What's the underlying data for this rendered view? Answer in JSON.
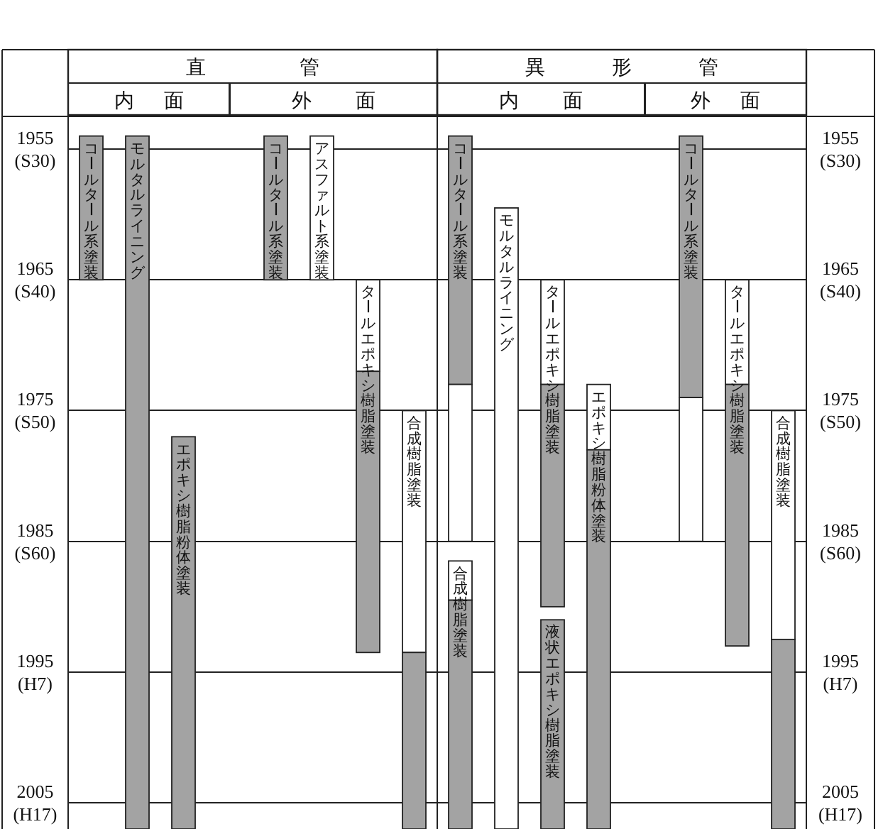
{
  "chart_data": [
    {
      "type": "bar",
      "title": "直管",
      "categories": [
        null,
        null,
        null,
        null,
        null,
        null,
        null,
        null
      ],
      "ylim": [
        2007,
        1952.5
      ],
      "yticks": [
        1955,
        1965,
        1975,
        1985,
        1995,
        2005
      ],
      "grid": "y",
      "annotations": [
        "内面",
        "外面",
        "(S30)",
        "(S40)",
        "(S50)",
        "(S60)",
        "(H7)",
        "(H17)"
      ],
      "series": [
        {
          "name": "コールタール系塗装",
          "color": "#a3a3a3",
          "base": [
            1954,
            null,
            null,
            null,
            1954,
            null,
            null,
            null
          ],
          "values": [
            11,
            null,
            null,
            null,
            11,
            null,
            null,
            null
          ]
        },
        {
          "name": "モルタルライニング",
          "color": "#a3a3a3",
          "base": [
            null,
            1954,
            null,
            null,
            null,
            null,
            null,
            null
          ],
          "values": [
            null,
            53,
            null,
            null,
            null,
            null,
            null,
            null
          ]
        },
        {
          "name": "エポキシ樹脂粉体塗装",
          "color": "#a3a3a3",
          "base": [
            null,
            null,
            1977,
            null,
            null,
            null,
            null,
            null
          ],
          "values": [
            null,
            null,
            30,
            null,
            null,
            null,
            null,
            null
          ]
        },
        {
          "name": "アスファルト系塗装",
          "color": "#ffffff",
          "base": [
            null,
            null,
            null,
            null,
            null,
            1954,
            null,
            null
          ],
          "values": [
            null,
            null,
            null,
            null,
            null,
            11,
            null,
            null
          ]
        },
        {
          "name": "タールエポキシ樹脂塗装",
          "color": "#ffffff",
          "base": [
            null,
            null,
            null,
            null,
            null,
            null,
            1965,
            null
          ],
          "values": [
            null,
            null,
            null,
            null,
            null,
            null,
            7,
            null
          ]
        },
        {
          "name": "合成樹脂塗装",
          "color": "#ffffff",
          "base": [
            null,
            null,
            null,
            null,
            null,
            null,
            null,
            1975
          ],
          "values": [
            null,
            null,
            null,
            null,
            null,
            null,
            null,
            18.5
          ]
        },
        {
          "color": "#a3a3a3",
          "base": [
            null,
            null,
            null,
            null,
            null,
            null,
            1972,
            1993.5
          ],
          "values": [
            null,
            null,
            null,
            null,
            null,
            null,
            21.5,
            13.5
          ]
        }
      ]
    },
    {
      "type": "bar",
      "title": "異形管",
      "categories": [
        null,
        null,
        null,
        null,
        null,
        null,
        null,
        null
      ],
      "y2lim": [
        2007,
        1952.5
      ],
      "y2ticks": [
        1955,
        1965,
        1975,
        1985,
        1995,
        2005
      ],
      "grid": "y",
      "annotations": [
        "内面",
        "外面",
        "(S30)",
        "(S40)",
        "(S50)",
        "(S60)",
        "(H7)",
        "(H17)"
      ],
      "series": [
        {
          "name": "コールタール系塗装",
          "color": "#a3a3a3",
          "axis": "y2",
          "base": [
            1954,
            null,
            null,
            null,
            null,
            1954,
            null,
            null
          ],
          "values": [
            19,
            null,
            null,
            null,
            null,
            20,
            null,
            null
          ]
        },
        {
          "name": "合成樹脂塗装",
          "color": "#ffffff",
          "axis": "y2",
          "base": [
            1986.5,
            null,
            null,
            null,
            null,
            null,
            null,
            1975
          ],
          "values": [
            3,
            null,
            null,
            null,
            null,
            null,
            null,
            17.5
          ]
        },
        {
          "name": "モルタルライニング",
          "color": "#ffffff",
          "axis": "y2",
          "base": [
            null,
            1959.5,
            null,
            null,
            null,
            null,
            null,
            null
          ],
          "values": [
            null,
            47.5,
            null,
            null,
            null,
            null,
            null,
            null
          ]
        },
        {
          "name": "タールエポキシ樹脂塗装",
          "color": "#ffffff",
          "axis": "y2",
          "base": [
            null,
            null,
            1965,
            null,
            null,
            null,
            1965,
            null
          ],
          "values": [
            null,
            null,
            8,
            null,
            null,
            null,
            8,
            null
          ]
        },
        {
          "name": "液状エポキシ樹脂塗装",
          "color": "#a3a3a3",
          "axis": "y2",
          "base": [
            null,
            null,
            1991,
            null,
            null,
            null,
            null,
            null
          ],
          "values": [
            null,
            null,
            16,
            null,
            null,
            null,
            null,
            null
          ]
        },
        {
          "name": "エポキシ樹脂粉体塗装",
          "color": "#ffffff",
          "axis": "y2",
          "base": [
            null,
            null,
            null,
            1973,
            null,
            null,
            null,
            null
          ],
          "values": [
            null,
            null,
            null,
            5,
            null,
            null,
            null,
            null
          ]
        },
        {
          "color": "#ffffff",
          "axis": "y2",
          "base": [
            1973,
            null,
            null,
            null,
            null,
            1974,
            null,
            null
          ],
          "values": [
            12,
            null,
            null,
            null,
            null,
            11,
            null,
            null
          ]
        },
        {
          "color": "#a3a3a3",
          "axis": "y2",
          "base": [
            1989.5,
            null,
            1973,
            1978,
            null,
            null,
            1973,
            1992.5
          ],
          "values": [
            17.5,
            null,
            17,
            29,
            null,
            null,
            20,
            14.5
          ]
        }
      ]
    }
  ]
}
